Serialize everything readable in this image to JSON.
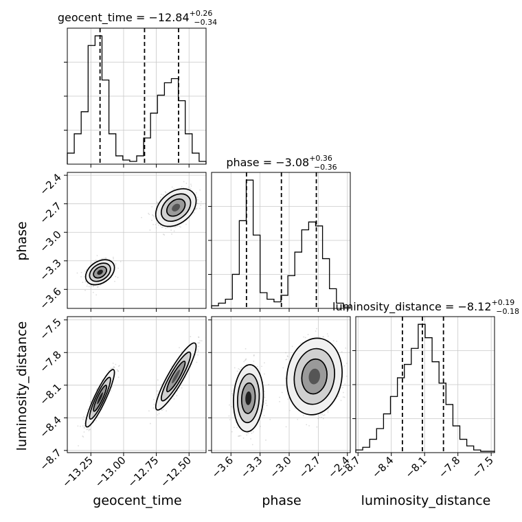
{
  "chart_data": {
    "type": "corner",
    "parameters": [
      "geocent_time",
      "phase",
      "luminosity_distance"
    ],
    "titles": [
      {
        "param": "geocent_time",
        "prefix": "geocent_time = ",
        "median": "−12.84",
        "plus": "+0.26",
        "minus": "−0.34"
      },
      {
        "param": "phase",
        "prefix": "phase = ",
        "median": "−3.08",
        "plus": "+0.36",
        "minus": "−0.36"
      },
      {
        "param": "luminosity_distance",
        "prefix": "luminosity_distance = ",
        "median": "−8.12",
        "plus": "+0.19",
        "minus": "−0.18"
      }
    ],
    "ranges": {
      "geocent_time": [
        -13.43,
        -12.37
      ],
      "phase": [
        -3.8,
        -2.37
      ],
      "luminosity_distance": [
        -8.72,
        -7.47
      ]
    },
    "ticks": {
      "geocent_time": {
        "values": [
          -13.25,
          -13.0,
          -12.75,
          -12.5
        ],
        "labels": [
          "−13.25",
          "−13.00",
          "−12.75",
          "−12.50"
        ]
      },
      "phase": {
        "values": [
          -3.6,
          -3.3,
          -3.0,
          -2.7,
          -2.4
        ],
        "labels": [
          "−3.6",
          "−3.3",
          "−3.0",
          "−2.7",
          "−2.4"
        ]
      },
      "luminosity_distance": {
        "values": [
          -8.7,
          -8.4,
          -8.1,
          -7.8,
          -7.5
        ],
        "labels": [
          "−8.7",
          "−8.4",
          "−8.1",
          "−7.8",
          "−7.5"
        ]
      }
    },
    "quantiles": {
      "geocent_time": [
        -13.18,
        -12.84,
        -12.58
      ],
      "phase": [
        -3.44,
        -3.08,
        -2.72
      ],
      "luminosity_distance": [
        -8.3,
        -8.12,
        -7.93
      ]
    },
    "histograms": {
      "geocent_time": {
        "range": [
          -13.43,
          -12.37
        ],
        "counts": [
          0.08,
          0.22,
          0.38,
          0.86,
          0.93,
          0.61,
          0.22,
          0.06,
          0.03,
          0.02,
          0.06,
          0.19,
          0.37,
          0.5,
          0.59,
          0.62,
          0.46,
          0.22,
          0.08,
          0.02
        ]
      },
      "phase": {
        "range": [
          -3.8,
          -2.37
        ],
        "counts": [
          0.02,
          0.04,
          0.07,
          0.26,
          0.67,
          0.98,
          0.56,
          0.12,
          0.07,
          0.05,
          0.1,
          0.25,
          0.43,
          0.6,
          0.66,
          0.63,
          0.38,
          0.15,
          0.04,
          0.01
        ]
      },
      "luminosity_distance": {
        "range": [
          -8.72,
          -7.47
        ],
        "counts": [
          0.02,
          0.04,
          0.1,
          0.18,
          0.29,
          0.42,
          0.56,
          0.66,
          0.78,
          0.96,
          0.86,
          0.68,
          0.52,
          0.36,
          0.2,
          0.1,
          0.05,
          0.02,
          0.01,
          0.01
        ]
      }
    },
    "modes": [
      {
        "weight": 0.5,
        "geocent_time": -13.18,
        "phase": -3.42,
        "luminosity_distance": -8.22,
        "sd": [
          0.05,
          0.06,
          0.12
        ],
        "rho_x_dist": 0.9
      },
      {
        "weight": 0.5,
        "geocent_time": -12.6,
        "phase": -2.74,
        "luminosity_distance": -8.02,
        "sd": [
          0.07,
          0.09,
          0.14
        ],
        "rho_x_dist": 0.9
      }
    ],
    "phase_dist_modes": [
      {
        "phase": -3.42,
        "luminosity_distance": -8.22,
        "sd": [
          0.07,
          0.14
        ]
      },
      {
        "phase": -2.74,
        "luminosity_distance": -8.02,
        "sd": [
          0.13,
          0.16
        ]
      }
    ],
    "grid": true
  }
}
